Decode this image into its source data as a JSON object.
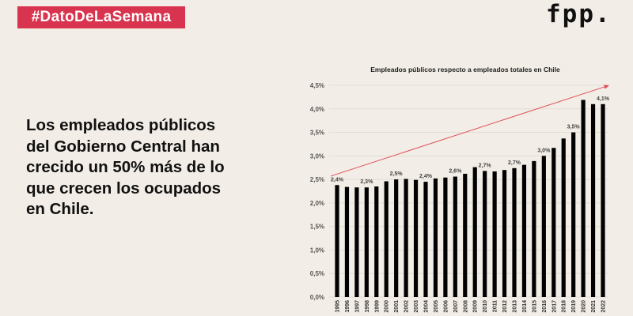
{
  "badge": "#DatoDeLaSemana",
  "logo": "fpp.",
  "headline_lines": [
    "Los empleados públicos",
    "del Gobierno Central han",
    "crecido un 50% más de lo",
    "que crecen los ocupados",
    "en Chile."
  ],
  "colors": {
    "background": "#f2ede6",
    "accent": "#d9344f",
    "bars": "#000000",
    "trend_arrow": "#e0505a"
  },
  "chart_data": {
    "type": "bar",
    "title": "Empleados públicos respecto a empleados totales en Chile",
    "categories": [
      "1995",
      "1996",
      "1997",
      "1998",
      "1999",
      "2000",
      "2001",
      "2002",
      "2003",
      "2004",
      "2005",
      "2006",
      "2007",
      "2008",
      "2009",
      "2010",
      "2011",
      "2012",
      "2013",
      "2014",
      "2015",
      "2016",
      "2017",
      "2018",
      "2019",
      "2020",
      "2021",
      "2022"
    ],
    "values": [
      2.38,
      2.34,
      2.33,
      2.33,
      2.35,
      2.46,
      2.5,
      2.51,
      2.49,
      2.45,
      2.52,
      2.54,
      2.56,
      2.62,
      2.76,
      2.68,
      2.67,
      2.7,
      2.74,
      2.81,
      2.89,
      3.0,
      3.17,
      3.37,
      3.5,
      4.19,
      4.1,
      4.1
    ],
    "data_labels": {
      "1995": "2,4%",
      "1998": "2,3%",
      "2001": "2,5%",
      "2004": "2,4%",
      "2007": "2,6%",
      "2010": "2,7%",
      "2013": "2,7%",
      "2016": "3,0%",
      "2019": "3,5%",
      "2022": "4,1%"
    },
    "yticks": [
      "0,0%",
      "0,5%",
      "1,0%",
      "1,5%",
      "2,0%",
      "2,5%",
      "3,0%",
      "3,5%",
      "4,0%",
      "4,5%"
    ],
    "ylim": [
      0,
      4.5
    ],
    "grid": true,
    "xlabel": "",
    "ylabel": "",
    "trend_arrow": {
      "from": [
        "1995",
        2.57
      ],
      "to": [
        "2022",
        4.5
      ]
    }
  }
}
